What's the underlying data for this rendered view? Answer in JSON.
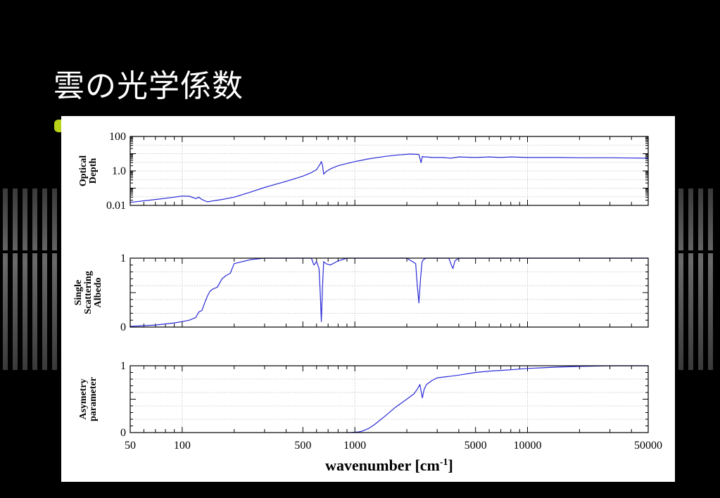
{
  "slide": {
    "title": "雲の光学係数"
  },
  "colors": {
    "background": "#000000",
    "curve": "#2a2ad8",
    "bullet": "#b8d21a"
  },
  "chart_data": [
    {
      "type": "line",
      "ylabel": "Optical Depth",
      "xscale": "log",
      "yscale": "log",
      "xlim": [
        50,
        50000
      ],
      "ylim": [
        0.01,
        100
      ],
      "yticks": [
        {
          "v": 100,
          "label": "100"
        },
        {
          "v": 1,
          "label": "1.0"
        },
        {
          "v": 0.01,
          "label": "0.01"
        }
      ],
      "grid": true,
      "series": [
        {
          "x": [
            50,
            70,
            90,
            100,
            110,
            120,
            125,
            130,
            140,
            150,
            160,
            170,
            200,
            250,
            300,
            400,
            500,
            560,
            600,
            625,
            640,
            650,
            660,
            680,
            720,
            800,
            1000,
            1200,
            1500,
            1800,
            2100,
            2350,
            2420,
            2460,
            2500,
            2600,
            2800,
            3200,
            3600,
            4000,
            5000,
            6000,
            7000,
            8000,
            10000,
            15000,
            20000,
            30000,
            50000
          ],
          "y": [
            0.015,
            0.022,
            0.03,
            0.035,
            0.034,
            0.025,
            0.03,
            0.022,
            0.016,
            0.018,
            0.02,
            0.022,
            0.03,
            0.06,
            0.11,
            0.25,
            0.5,
            0.8,
            1.2,
            2.2,
            3.5,
            2.0,
            0.65,
            0.9,
            1.3,
            2.0,
            3.5,
            5.0,
            7.0,
            8.5,
            9.5,
            9.0,
            3.0,
            7.0,
            6.5,
            6.5,
            6.0,
            6.0,
            5.5,
            6.5,
            6.0,
            6.5,
            6.0,
            6.5,
            6.0,
            6.0,
            5.8,
            5.8,
            5.5
          ]
        }
      ]
    },
    {
      "type": "line",
      "ylabel": "Single Scattering Albedo",
      "xscale": "log",
      "xlim": [
        50,
        50000
      ],
      "ylim": [
        0,
        1
      ],
      "yticks": [
        {
          "v": 1,
          "label": "1"
        },
        {
          "v": 0,
          "label": "0"
        }
      ],
      "grid": true,
      "series": [
        {
          "x": [
            50,
            70,
            90,
            100,
            110,
            120,
            125,
            130,
            135,
            140,
            145,
            150,
            160,
            170,
            180,
            190,
            200,
            250,
            300,
            400,
            500,
            560,
            580,
            600,
            620,
            630,
            640,
            650,
            660,
            680,
            720,
            800,
            900,
            1000,
            1500,
            2000,
            2250,
            2300,
            2350,
            2400,
            2450,
            2500,
            2600,
            3000,
            3500,
            3650,
            3700,
            3800,
            4000,
            4500,
            50000
          ],
          "y": [
            0.01,
            0.03,
            0.06,
            0.08,
            0.1,
            0.14,
            0.22,
            0.24,
            0.35,
            0.45,
            0.52,
            0.55,
            0.58,
            0.7,
            0.75,
            0.78,
            0.92,
            0.98,
            1.0,
            1.0,
            1.0,
            1.0,
            0.9,
            0.95,
            0.85,
            0.5,
            0.08,
            0.6,
            0.95,
            0.92,
            0.9,
            0.96,
            1.0,
            1.0,
            1.0,
            1.0,
            0.92,
            0.6,
            0.35,
            0.7,
            0.95,
            0.98,
            1.0,
            1.0,
            1.0,
            0.88,
            0.85,
            0.96,
            1.0,
            1.0,
            1.0
          ]
        }
      ]
    },
    {
      "type": "line",
      "ylabel": "Asymetry parameter",
      "xlabel": "wavenumber [cm-1]",
      "xscale": "log",
      "xlim": [
        50,
        50000
      ],
      "ylim": [
        0,
        1
      ],
      "yticks": [
        {
          "v": 1,
          "label": "1"
        },
        {
          "v": 0,
          "label": "0"
        }
      ],
      "xticks": [
        {
          "v": 50,
          "label": "50"
        },
        {
          "v": 100,
          "label": "100"
        },
        {
          "v": 500,
          "label": "500"
        },
        {
          "v": 1000,
          "label": "1000"
        },
        {
          "v": 5000,
          "label": "5000"
        },
        {
          "v": 10000,
          "label": "10000"
        },
        {
          "v": 50000,
          "label": "50000"
        }
      ],
      "grid": true,
      "series": [
        {
          "x": [
            900,
            950,
            1000,
            1050,
            1100,
            1200,
            1300,
            1500,
            1700,
            2000,
            2200,
            2300,
            2380,
            2420,
            2460,
            2520,
            2600,
            2800,
            3000,
            3500,
            4000,
            5000,
            6000,
            7000,
            8000,
            10000,
            15000,
            20000,
            30000,
            50000
          ],
          "y": [
            0.0,
            0.002,
            0.005,
            0.01,
            0.02,
            0.06,
            0.12,
            0.25,
            0.37,
            0.5,
            0.58,
            0.65,
            0.72,
            0.62,
            0.52,
            0.65,
            0.72,
            0.78,
            0.82,
            0.84,
            0.86,
            0.9,
            0.92,
            0.93,
            0.94,
            0.96,
            0.98,
            0.99,
            1.0,
            1.0
          ]
        }
      ]
    }
  ]
}
